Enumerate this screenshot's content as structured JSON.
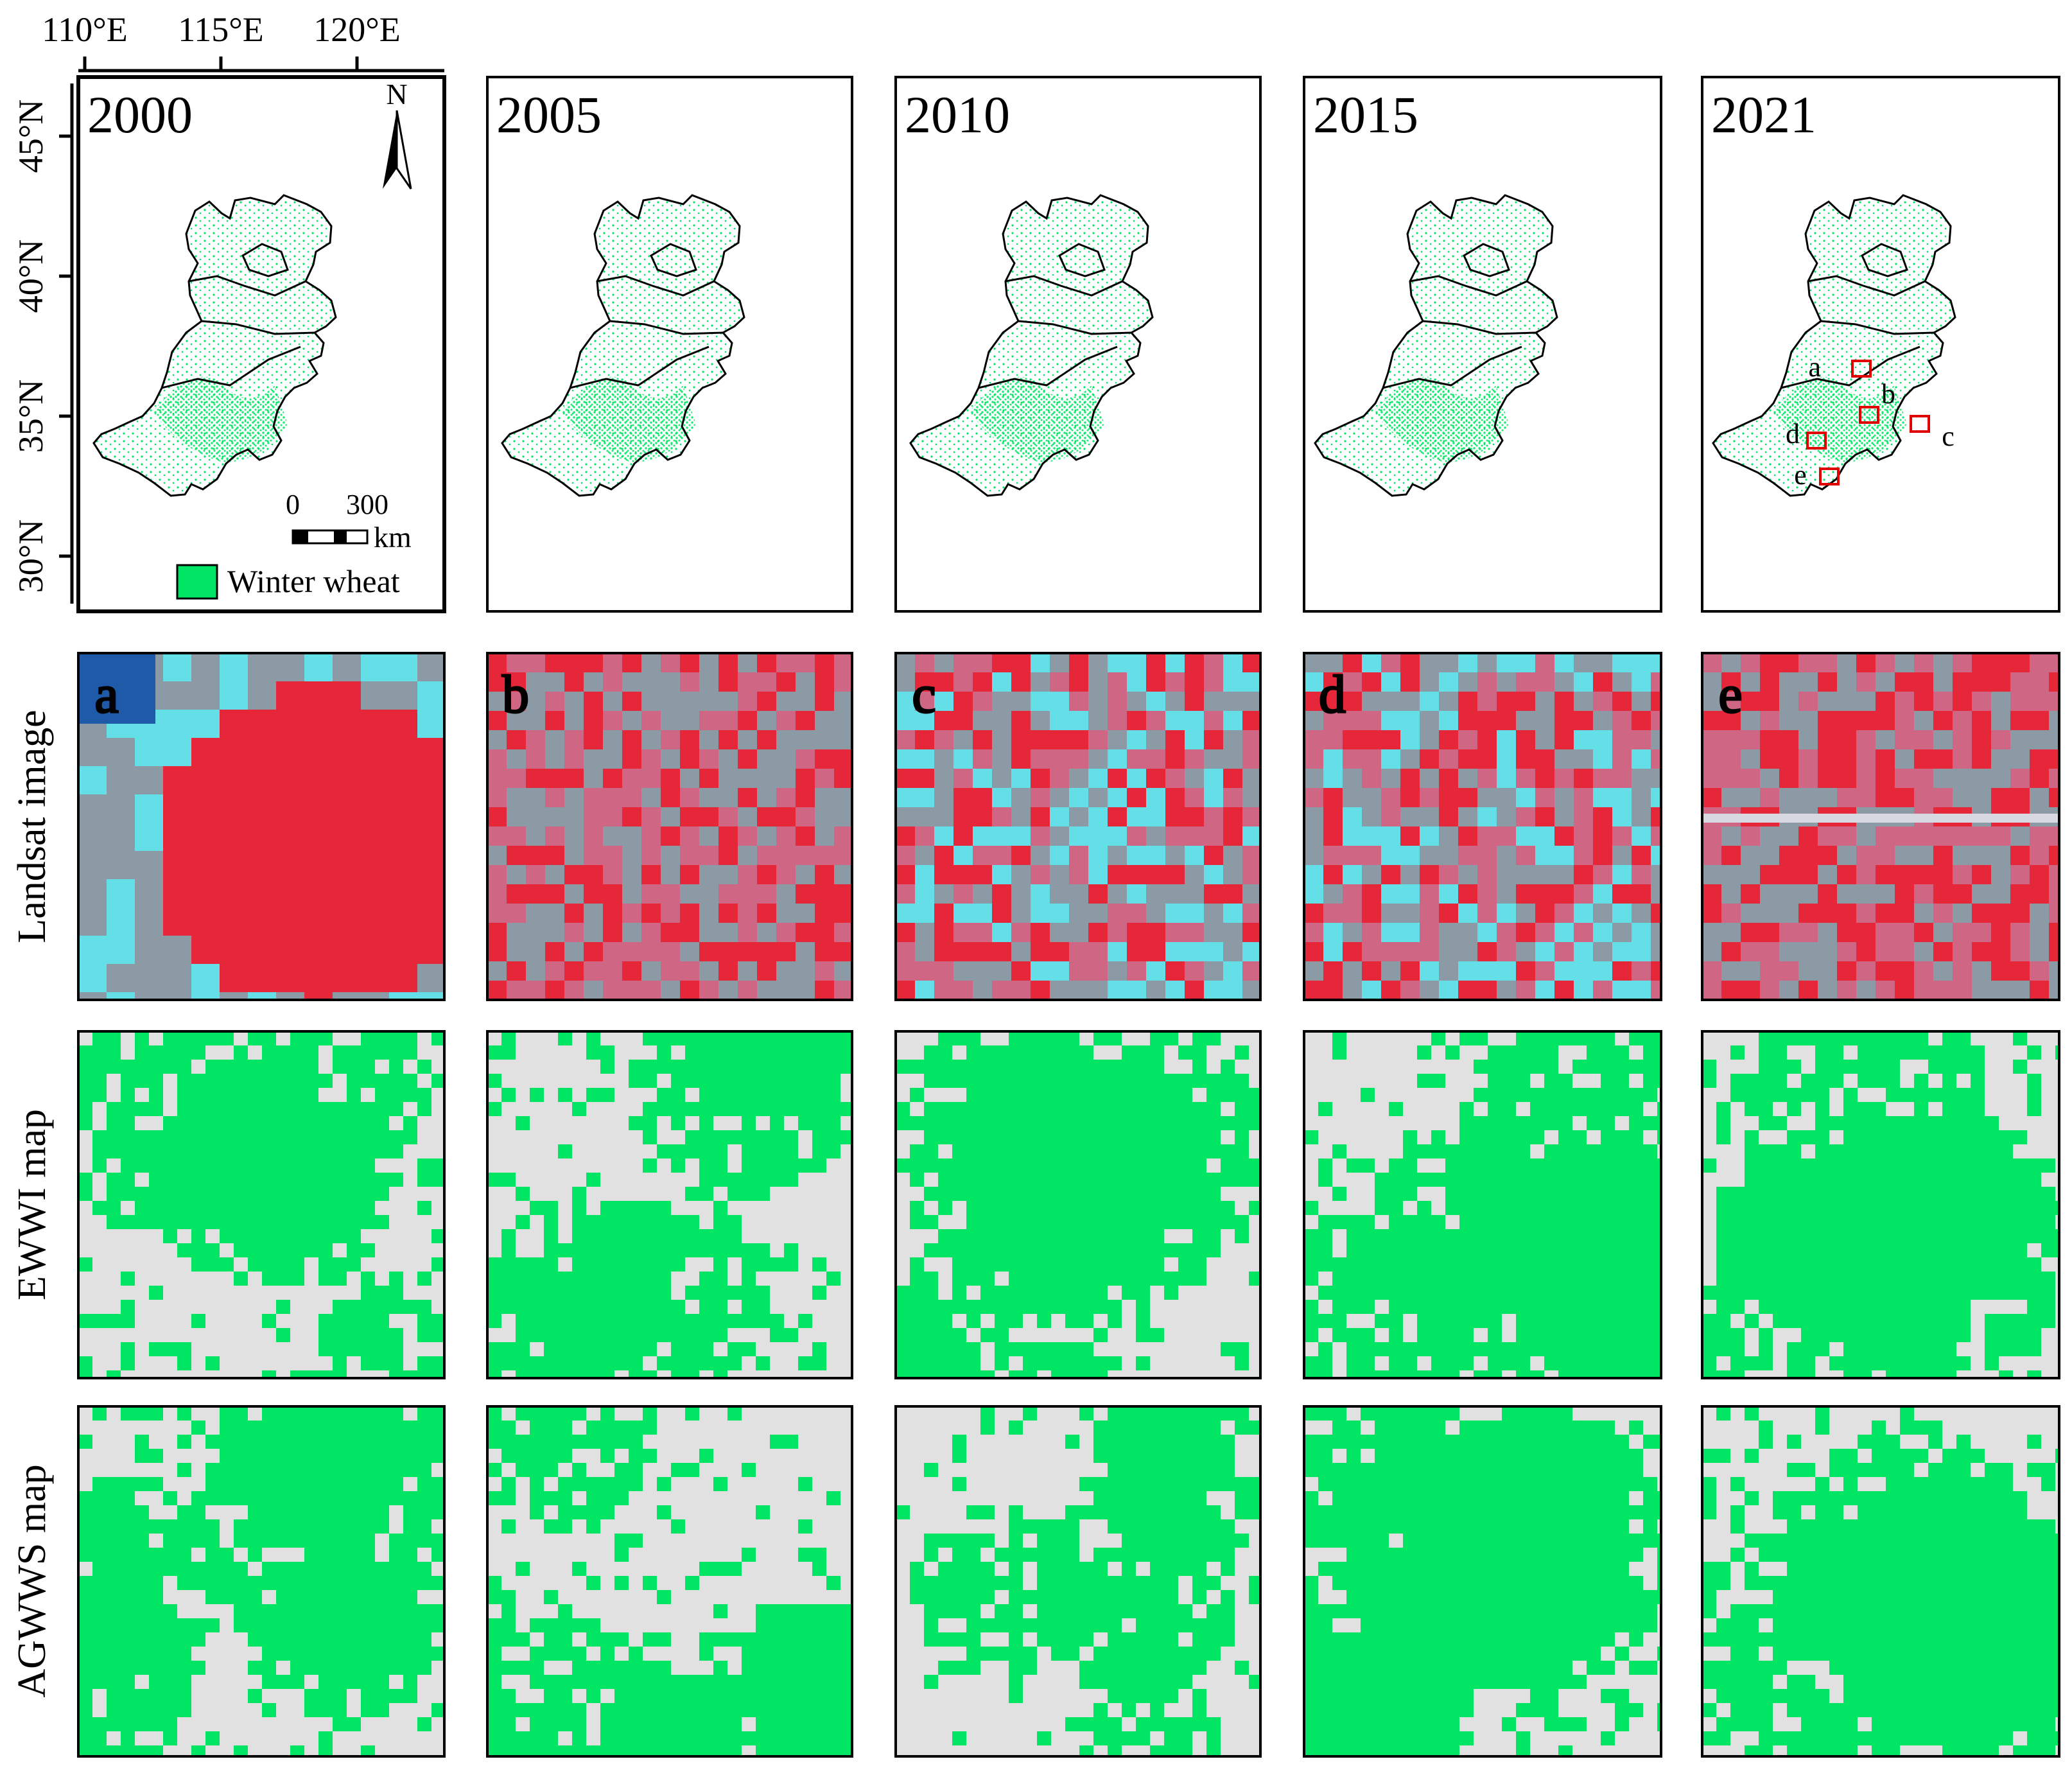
{
  "colors": {
    "wheat": "#00e664",
    "background_gray": "#e1e1e1",
    "outline": "#000000",
    "roi_box": "#e00000",
    "landsat_red": "#ee1b2e",
    "landsat_gray": "#8c9aa6",
    "landsat_cyan": "#5fe6ee",
    "landsat_pink": "#d66080",
    "water_blue": "#1f5aa8"
  },
  "longitude_ticks": [
    "110°E",
    "115°E",
    "120°E"
  ],
  "latitude_ticks": [
    "45°N",
    "40°N",
    "35°N",
    "30°N"
  ],
  "years": [
    "2000",
    "2005",
    "2010",
    "2015",
    "2021"
  ],
  "north_arrow_label": "N",
  "scale_bar": {
    "labels": [
      "0",
      "300"
    ],
    "unit": "km"
  },
  "legend_label": "Winter wheat",
  "roi_labels": [
    "a",
    "b",
    "c",
    "d",
    "e"
  ],
  "row_labels": [
    "Landsat image",
    "EWWI map",
    "AGWWS map"
  ],
  "panel_letters": [
    "a",
    "b",
    "c",
    "d",
    "e"
  ]
}
